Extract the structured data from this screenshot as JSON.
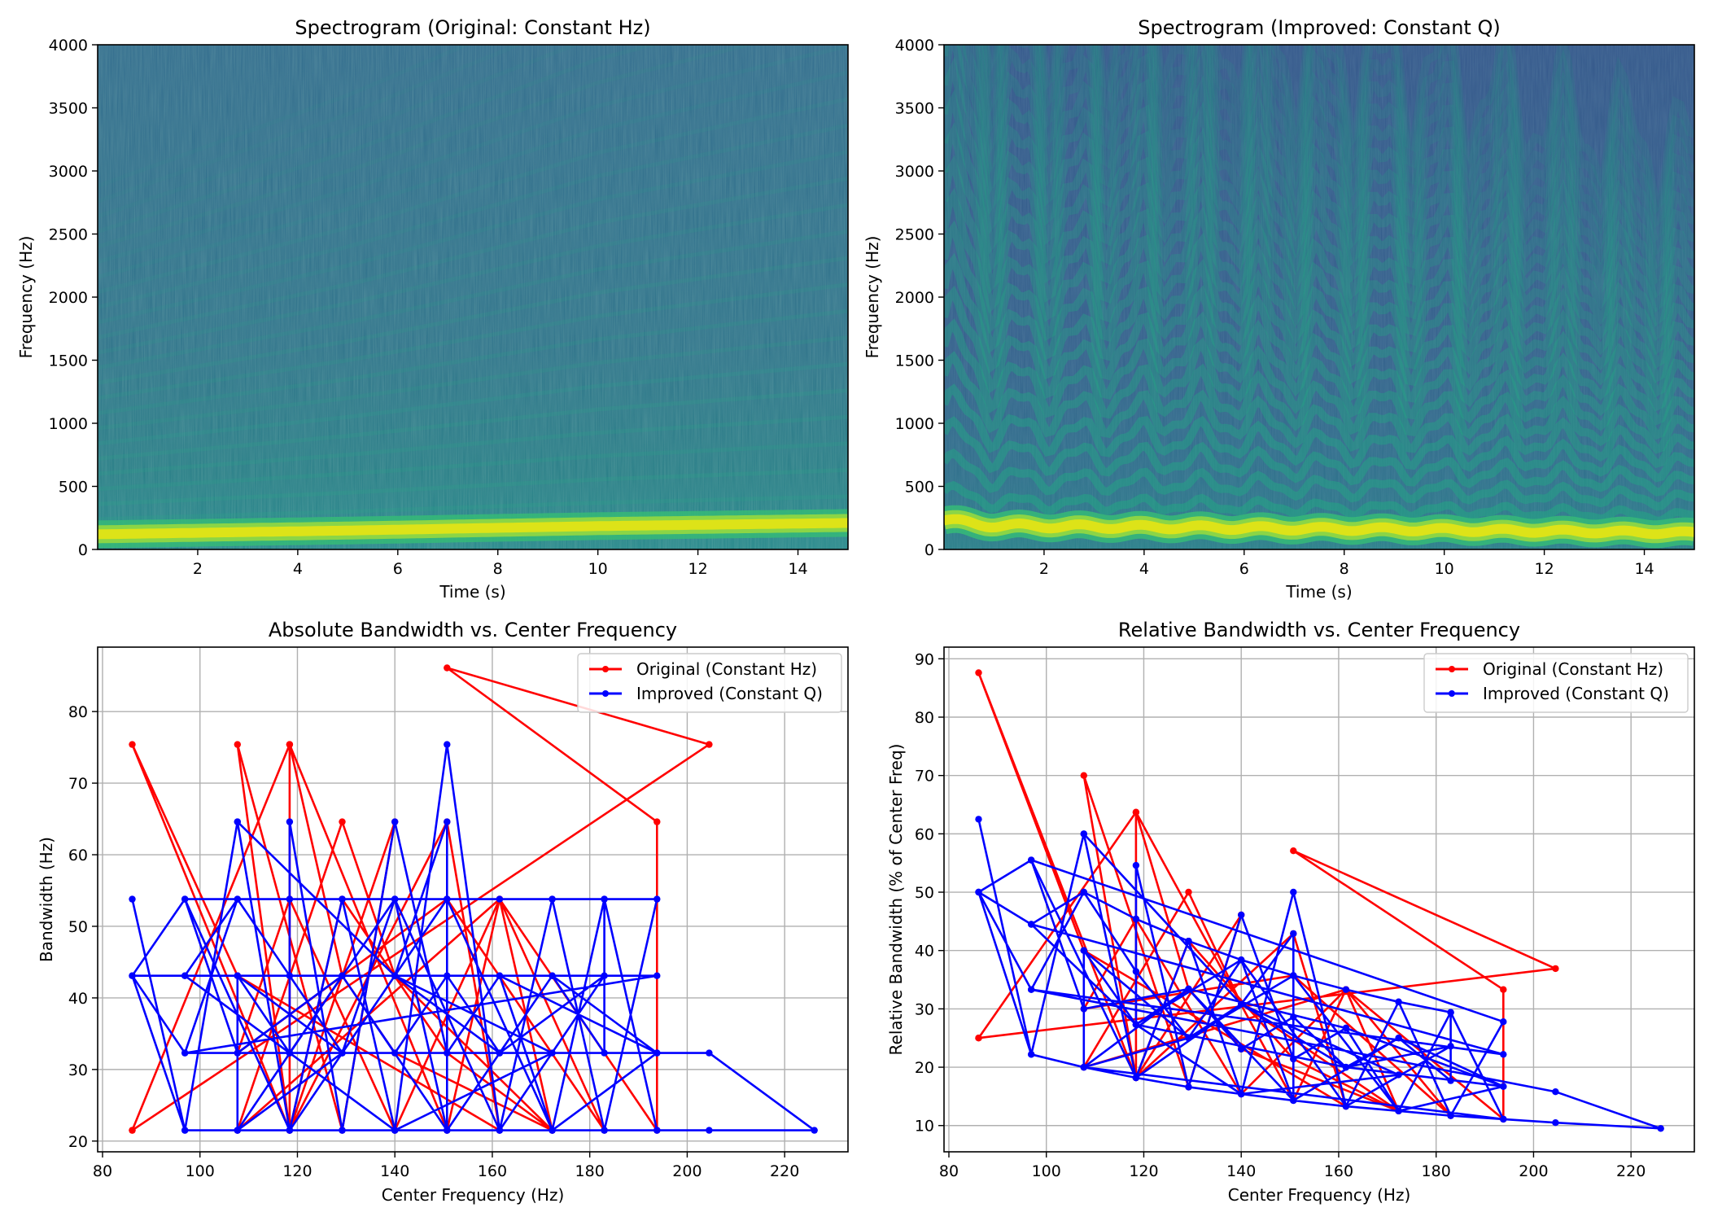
{
  "chart_data": [
    {
      "type": "heatmap",
      "title": "Spectrogram (Original: Constant Hz)",
      "xlabel": "Time (s)",
      "ylabel": "Frequency (Hz)",
      "xlim": [
        0,
        15
      ],
      "ylim": [
        0,
        4000
      ],
      "xticks": [
        2,
        4,
        6,
        8,
        10,
        12,
        14
      ],
      "yticks": [
        0,
        500,
        1000,
        1500,
        2000,
        2500,
        3000,
        3500,
        4000
      ],
      "colormap": "viridis",
      "fundamental_band": {
        "t": [
          0,
          5,
          10,
          15
        ],
        "f": [
          120,
          150,
          185,
          210
        ]
      },
      "harmonic_lines": "faint rising harmonic streaks",
      "grid": false
    },
    {
      "type": "heatmap",
      "title": "Spectrogram (Improved: Constant Q)",
      "xlabel": "Time (s)",
      "ylabel": "Frequency (Hz)",
      "xlim": [
        0,
        15
      ],
      "ylim": [
        0,
        4000
      ],
      "xticks": [
        2,
        4,
        6,
        8,
        10,
        12,
        14
      ],
      "yticks": [
        0,
        500,
        1000,
        1500,
        2000,
        2500,
        3000,
        3500,
        4000
      ],
      "colormap": "viridis",
      "fundamental_band": {
        "t": [
          0,
          1,
          3,
          5,
          7,
          9,
          11,
          13,
          15
        ],
        "f": [
          230,
          190,
          180,
          175,
          165,
          160,
          150,
          140,
          130
        ]
      },
      "harmonic_lines": "wavy vibrato harmonic bands",
      "grid": false
    },
    {
      "type": "line",
      "title": "Absolute Bandwidth vs. Center Frequency",
      "xlabel": "Center Frequency (Hz)",
      "ylabel": "Bandwidth (Hz)",
      "xlim": [
        79,
        233
      ],
      "ylim": [
        18.5,
        89
      ],
      "xticks": [
        80,
        100,
        120,
        140,
        160,
        180,
        200,
        220
      ],
      "yticks": [
        20,
        30,
        40,
        50,
        60,
        70,
        80
      ],
      "grid": true,
      "legend": "top-right",
      "colors": {
        "original": "#ff0000",
        "improved": "#0000ff"
      },
      "series": [
        {
          "name": "Original (Constant Hz)",
          "color": "#ff0000",
          "x": [
            86.1,
            204.5,
            150.7,
            193.8,
            193.8,
            161.5,
            150.7,
            118.4,
            118.4,
            140,
            129.2,
            107.7,
            118.4,
            150.7,
            161.5,
            107.7,
            86.1,
            118.4,
            129.2,
            150.7,
            172.3,
            140,
            129.2,
            107.7,
            161.5,
            183,
            150.7,
            107.7,
            118.4,
            140,
            161.5,
            172.3,
            140,
            129.2,
            118.4,
            86.1
          ],
          "y": [
            21.5,
            75.4,
            86.1,
            64.6,
            21.5,
            53.8,
            21.5,
            75.4,
            21.5,
            64.6,
            21.5,
            75.4,
            21.5,
            64.6,
            21.5,
            43.1,
            75.4,
            21.5,
            53.8,
            32.3,
            21.5,
            43.1,
            64.6,
            21.5,
            53.8,
            21.5,
            53.8,
            32.3,
            53.8,
            21.5,
            53.8,
            21.5,
            32.3,
            43.1,
            75.4,
            21.5
          ]
        },
        {
          "name": "Improved (Constant Q)",
          "color": "#0000ff",
          "x": [
            86.1,
            96.9,
            107.7,
            118.4,
            129.2,
            140,
            150.7,
            161.5,
            172.3,
            183,
            193.8,
            204.5,
            226.1,
            204.5,
            96.9,
            86.1,
            96.9,
            107.7,
            118.4,
            129.2,
            140,
            150.7,
            161.5,
            172.3,
            183,
            193.8,
            96.9,
            86.1,
            96.9,
            193.8,
            96.9,
            107.7,
            118.4,
            129.2,
            140,
            150.7,
            161.5,
            172.3,
            183,
            193.8,
            107.7,
            107.7,
            118.4,
            129.2,
            140,
            150.7,
            161.5,
            172.3,
            183,
            183,
            172.3,
            161.5,
            150.7,
            140,
            129.2,
            118.4,
            118.4,
            107.7,
            129.2,
            140,
            150.7,
            150.7,
            140,
            129.2,
            118.4,
            107.7,
            96.9,
            118.4,
            140,
            161.5,
            183,
            161.5,
            140,
            118.4,
            96.9,
            107.7,
            129.2,
            150.7,
            172.3,
            193.8,
            172.3,
            150.7,
            129.2,
            107.7,
            129.2,
            161.5,
            193.8,
            161.5,
            118.4,
            140,
            172.3,
            140,
            107.7
          ],
          "y": [
            53.8,
            21.5,
            21.5,
            21.5,
            21.5,
            21.5,
            21.5,
            21.5,
            21.5,
            21.5,
            21.5,
            21.5,
            21.5,
            32.3,
            32.3,
            43.1,
            21.5,
            64.6,
            21.5,
            53.8,
            21.5,
            75.4,
            21.5,
            53.8,
            21.5,
            53.8,
            53.8,
            43.1,
            43.1,
            43.1,
            32.3,
            53.8,
            53.8,
            53.8,
            53.8,
            53.8,
            53.8,
            53.8,
            53.8,
            21.5,
            21.5,
            43.1,
            32.3,
            43.1,
            32.3,
            43.1,
            32.3,
            43.1,
            32.3,
            53.8,
            21.5,
            43.1,
            32.3,
            64.6,
            21.5,
            64.6,
            32.3,
            43.1,
            32.3,
            43.1,
            64.6,
            21.5,
            53.8,
            32.3,
            43.1,
            53.8,
            43.1,
            32.3,
            53.8,
            21.5,
            43.1,
            32.3,
            43.1,
            21.5,
            53.8,
            32.3,
            43.1,
            21.5,
            43.1,
            32.3,
            21.5,
            53.8,
            32.3,
            21.5,
            43.1,
            43.1,
            32.3,
            32.3,
            32.3,
            21.5,
            32.3,
            43.1,
            64.6
          ]
        }
      ]
    },
    {
      "type": "line",
      "title": "Relative Bandwidth vs. Center Frequency",
      "xlabel": "Center Frequency (Hz)",
      "ylabel": "Relative Bandwidth (% of Center Freq)",
      "xlim": [
        79,
        233
      ],
      "ylim": [
        5.5,
        92
      ],
      "xticks": [
        80,
        100,
        120,
        140,
        160,
        180,
        200,
        220
      ],
      "yticks": [
        10,
        20,
        30,
        40,
        50,
        60,
        70,
        80,
        90
      ],
      "grid": true,
      "legend": "top-right",
      "colors": {
        "original": "#ff0000",
        "improved": "#0000ff"
      },
      "series": [
        {
          "name": "Original (Constant Hz)",
          "color": "#ff0000",
          "x": [
            86.1,
            204.5,
            150.7,
            193.8,
            193.8,
            161.5,
            150.7,
            118.4,
            118.4,
            140,
            129.2,
            107.7,
            118.4,
            150.7,
            161.5,
            107.7,
            86.1,
            118.4,
            129.2,
            150.7,
            172.3,
            140,
            129.2,
            107.7,
            161.5,
            183,
            150.7,
            107.7,
            118.4,
            140,
            161.5,
            172.3,
            140,
            129.2,
            118.4,
            86.1
          ],
          "y": [
            25.0,
            36.9,
            57.1,
            33.3,
            11.1,
            33.3,
            14.3,
            63.7,
            18.2,
            46.1,
            16.6,
            70.0,
            18.2,
            42.9,
            13.3,
            40.0,
            87.6,
            18.2,
            41.6,
            21.4,
            12.5,
            30.8,
            50.0,
            20.0,
            33.3,
            11.7,
            35.7,
            30.0,
            45.4,
            15.4,
            33.3,
            12.5,
            23.1,
            33.4,
            63.7,
            25.0
          ]
        },
        {
          "name": "Improved (Constant Q)",
          "color": "#0000ff",
          "x": [
            86.1,
            96.9,
            107.7,
            118.4,
            129.2,
            140,
            150.7,
            161.5,
            172.3,
            183,
            193.8,
            204.5,
            226.1,
            204.5,
            96.9,
            86.1,
            96.9,
            107.7,
            118.4,
            129.2,
            140,
            150.7,
            161.5,
            172.3,
            183,
            193.8,
            96.9,
            86.1,
            96.9,
            193.8,
            96.9,
            107.7,
            118.4,
            129.2,
            140,
            150.7,
            161.5,
            172.3,
            183,
            193.8,
            107.7,
            107.7,
            118.4,
            129.2,
            140,
            150.7,
            161.5,
            172.3,
            183,
            183,
            172.3,
            161.5,
            150.7,
            140,
            129.2,
            118.4,
            118.4,
            107.7,
            129.2,
            140,
            150.7,
            150.7,
            140,
            129.2,
            118.4,
            107.7,
            96.9,
            118.4,
            140,
            161.5,
            183,
            161.5,
            140,
            118.4,
            96.9,
            107.7,
            129.2,
            150.7,
            172.3,
            193.8,
            172.3,
            150.7,
            129.2,
            107.7,
            129.2,
            161.5,
            193.8,
            161.5,
            118.4,
            140,
            172.3,
            140,
            107.7
          ],
          "y": [
            62.5,
            22.2,
            20.0,
            18.2,
            16.6,
            15.4,
            14.3,
            13.3,
            12.5,
            11.7,
            11.1,
            10.5,
            9.5,
            15.8,
            33.3,
            50.0,
            22.2,
            60.0,
            18.2,
            41.6,
            15.4,
            50.0,
            13.3,
            31.2,
            11.7,
            27.8,
            55.5,
            50.0,
            44.5,
            22.2,
            33.3,
            50.0,
            45.4,
            41.6,
            38.4,
            35.7,
            33.3,
            31.2,
            29.4,
            11.1,
            20.0,
            40.0,
            27.3,
            33.4,
            23.1,
            28.6,
            20.0,
            25.0,
            17.7,
            29.4,
            12.5,
            26.7,
            21.4,
            46.1,
            16.6,
            54.6,
            27.3,
            40.0,
            25.0,
            30.8,
            42.9,
            14.3,
            38.4,
            25.0,
            36.4,
            50.0,
            44.5,
            27.3,
            38.4,
            13.3,
            23.6,
            20.0,
            30.8,
            18.2,
            55.5,
            30.0,
            33.4,
            14.3,
            25.0,
            16.7,
            12.5,
            35.7,
            25.0,
            20.0,
            33.4,
            26.7,
            16.7,
            20.0,
            27.3,
            15.4,
            18.7,
            30.8,
            60.0
          ]
        }
      ]
    }
  ]
}
